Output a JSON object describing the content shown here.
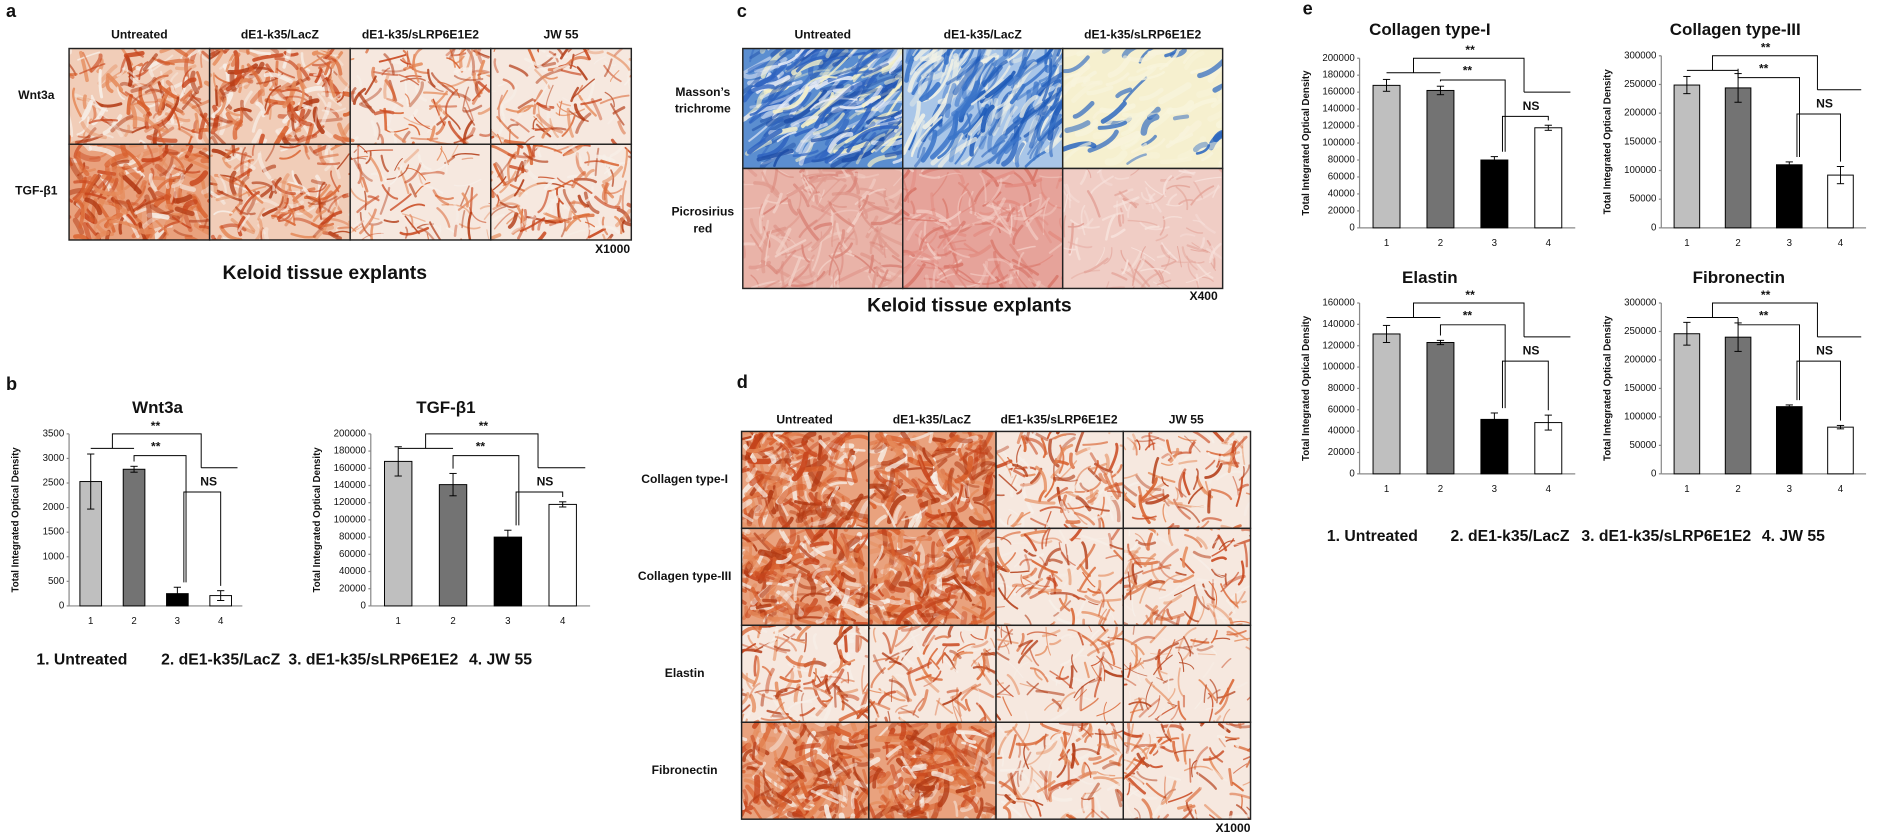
{
  "panel_labels": [
    "a",
    "b",
    "c",
    "d",
    "e"
  ],
  "panel_a": {
    "columns": [
      "Untreated",
      "dE1-k35/LacZ",
      "dE1-k35/sLRP6E1E2",
      "JW 55"
    ],
    "rows": [
      "Wnt3a",
      "TGF-β1"
    ],
    "magnification": "X1000",
    "caption": "Keloid tissue explants"
  },
  "panel_c": {
    "columns": [
      "Untreated",
      "dE1-k35/LacZ",
      "dE1-k35/sLRP6E1E2"
    ],
    "rows": [
      "Masson’s trichrome",
      "Picrosirius red"
    ],
    "magnification": "X400",
    "caption": "Keloid tissue explants"
  },
  "panel_d": {
    "columns": [
      "Untreated",
      "dE1-k35/LacZ",
      "dE1-k35/sLRP6E1E2",
      "JW 55"
    ],
    "rows": [
      "Collagen type-I",
      "Collagen type-III",
      "Elastin",
      "Fibronectin"
    ],
    "magnification": "X1000"
  },
  "group_legend": [
    "1. Untreated",
    "2. dE1-k35/LacZ",
    "3. dE1-k35/sLRP6E1E2",
    "4. JW 55"
  ],
  "chart_data": [
    {
      "type": "bar",
      "title": "Wnt3a",
      "ylabel": "Total Integrated Optical Density",
      "categories": [
        "1",
        "2",
        "3",
        "4"
      ],
      "values": [
        2530,
        2780,
        250,
        210
      ],
      "errors": [
        560,
        60,
        130,
        100
      ],
      "colors": [
        "#bfbfbf",
        "#737373",
        "#000000",
        "#ffffff"
      ],
      "ylim": [
        0,
        3500
      ],
      "yticks": [
        0,
        500,
        1000,
        1500,
        2000,
        2500,
        3000,
        3500
      ],
      "annotations": [
        "**",
        "**",
        "NS"
      ]
    },
    {
      "type": "bar",
      "title": "TGF-β1",
      "ylabel": "Total Integrated Optical Density",
      "categories": [
        "1",
        "2",
        "3",
        "4"
      ],
      "values": [
        168000,
        141000,
        80000,
        118000
      ],
      "errors": [
        17000,
        13000,
        8000,
        3000
      ],
      "colors": [
        "#bfbfbf",
        "#737373",
        "#000000",
        "#ffffff"
      ],
      "ylim": [
        0,
        200000
      ],
      "yticks": [
        0,
        20000,
        40000,
        60000,
        80000,
        100000,
        120000,
        140000,
        160000,
        180000,
        200000
      ],
      "annotations": [
        "**",
        "**",
        "NS"
      ]
    },
    {
      "type": "bar",
      "title": "Collagen type-I",
      "ylabel": "Total Integrated Optical Density",
      "categories": [
        "1",
        "2",
        "3",
        "4"
      ],
      "values": [
        168000,
        162000,
        80000,
        118000
      ],
      "errors": [
        7000,
        5000,
        4000,
        3000
      ],
      "colors": [
        "#bfbfbf",
        "#737373",
        "#000000",
        "#ffffff"
      ],
      "ylim": [
        0,
        200000
      ],
      "yticks": [
        0,
        20000,
        40000,
        60000,
        80000,
        100000,
        120000,
        140000,
        160000,
        180000,
        200000
      ],
      "annotations": [
        "**",
        "**",
        "NS"
      ]
    },
    {
      "type": "bar",
      "title": "Collagen type-III",
      "ylabel": "Total Integrated Optical Density",
      "categories": [
        "1",
        "2",
        "3",
        "4"
      ],
      "values": [
        249000,
        244000,
        110000,
        92000
      ],
      "errors": [
        15000,
        25000,
        5000,
        15000
      ],
      "colors": [
        "#bfbfbf",
        "#737373",
        "#000000",
        "#ffffff"
      ],
      "ylim": [
        0,
        300000
      ],
      "yticks": [
        0,
        50000,
        100000,
        150000,
        200000,
        250000,
        300000
      ],
      "annotations": [
        "**",
        "**",
        "NS"
      ]
    },
    {
      "type": "bar",
      "title": "Elastin",
      "ylabel": "Total Integrated Optical Density",
      "categories": [
        "1",
        "2",
        "3",
        "4"
      ],
      "values": [
        131000,
        123000,
        51000,
        48000
      ],
      "errors": [
        8000,
        2000,
        6000,
        7000
      ],
      "colors": [
        "#bfbfbf",
        "#737373",
        "#000000",
        "#ffffff"
      ],
      "ylim": [
        0,
        160000
      ],
      "yticks": [
        0,
        20000,
        40000,
        60000,
        80000,
        100000,
        120000,
        140000,
        160000
      ],
      "annotations": [
        "**",
        "**",
        "NS"
      ]
    },
    {
      "type": "bar",
      "title": "Fibronectin",
      "ylabel": "Total Integrated Optical Density",
      "categories": [
        "1",
        "2",
        "3",
        "4"
      ],
      "values": [
        246000,
        240000,
        118000,
        82000
      ],
      "errors": [
        20000,
        25000,
        3000,
        3000
      ],
      "colors": [
        "#bfbfbf",
        "#737373",
        "#000000",
        "#ffffff"
      ],
      "ylim": [
        0,
        300000
      ],
      "yticks": [
        0,
        50000,
        100000,
        150000,
        200000,
        250000,
        300000
      ],
      "annotations": [
        "**",
        "**",
        "NS"
      ]
    }
  ]
}
